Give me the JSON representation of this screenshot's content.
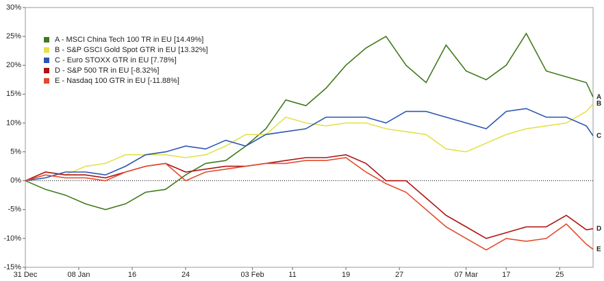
{
  "chart_data": {
    "type": "line",
    "x": [
      0,
      3,
      6,
      9,
      12,
      15,
      18,
      21,
      24,
      27,
      30,
      33,
      36,
      39,
      42,
      45,
      48,
      51,
      54,
      57,
      60,
      63,
      66,
      69,
      72,
      75,
      78,
      81,
      84,
      85
    ],
    "xlim": [
      0,
      85
    ],
    "xticks": [
      {
        "value": 0,
        "label": "31 Dec"
      },
      {
        "value": 8,
        "label": "08 Jan"
      },
      {
        "value": 16,
        "label": "16"
      },
      {
        "value": 24,
        "label": "24"
      },
      {
        "value": 34,
        "label": "03 Feb"
      },
      {
        "value": 40,
        "label": "11"
      },
      {
        "value": 48,
        "label": "19"
      },
      {
        "value": 56,
        "label": "27"
      },
      {
        "value": 66,
        "label": "07 Mar"
      },
      {
        "value": 72,
        "label": "17"
      },
      {
        "value": 80,
        "label": "25"
      }
    ],
    "ylim": [
      -15,
      30
    ],
    "yticks": [
      {
        "value": -15,
        "label": "-15%"
      },
      {
        "value": -10,
        "label": "-10%"
      },
      {
        "value": -5,
        "label": "-5%"
      },
      {
        "value": 0,
        "label": "0%"
      },
      {
        "value": 5,
        "label": "5%"
      },
      {
        "value": 10,
        "label": "10%"
      },
      {
        "value": 15,
        "label": "15%"
      },
      {
        "value": 20,
        "label": "20%"
      },
      {
        "value": 25,
        "label": "25%"
      },
      {
        "value": 30,
        "label": "30%"
      }
    ],
    "zero_line": true,
    "legend": "top-left",
    "series": [
      {
        "name": "A - MSCI China Tech 100 TR in EU [14.49%]",
        "tag": "A",
        "color": "#3f7a1c",
        "values": [
          0,
          -1.5,
          -2.5,
          -4,
          -5,
          -4,
          -2,
          -1.5,
          1,
          3,
          3.5,
          6,
          9,
          14,
          13,
          16,
          20,
          23,
          25,
          20,
          17,
          23.5,
          19,
          17.5,
          20,
          25.5,
          19,
          18,
          17,
          14.49
        ]
      },
      {
        "name": "B - S&P GSCI Gold Spot GTR in EU [13.32%]",
        "tag": "B",
        "color": "#e2e24a",
        "values": [
          0,
          1.5,
          1,
          2.5,
          3,
          4.5,
          4.5,
          4.5,
          4,
          4.5,
          6,
          8,
          8,
          11,
          10,
          9.5,
          10,
          10,
          9,
          8.5,
          8,
          5.5,
          5,
          6.5,
          8,
          9,
          9.5,
          10,
          12,
          13.32
        ]
      },
      {
        "name": "C - Euro STOXX GTR in EU [7.78%]",
        "tag": "C",
        "color": "#2b56b0",
        "values": [
          0,
          0.5,
          1.5,
          1.5,
          1,
          2.5,
          4.5,
          5,
          6,
          5.5,
          7,
          6,
          8,
          8.5,
          9,
          11,
          11,
          11,
          10,
          12,
          12,
          11,
          10,
          9,
          12,
          12.5,
          11,
          11,
          9.5,
          7.78
        ]
      },
      {
        "name": "D - S&P 500 TR in EU [-8.32%]",
        "tag": "D",
        "color": "#b01212",
        "values": [
          0,
          1.5,
          1,
          1,
          0.5,
          1.5,
          2.5,
          3,
          1.5,
          2,
          2.5,
          2.5,
          3,
          3.5,
          4,
          4,
          4.5,
          3,
          0,
          0,
          -3,
          -6,
          -8,
          -10,
          -9,
          -8,
          -8,
          -6,
          -8.5,
          -8.32
        ]
      },
      {
        "name": "E - Nasdaq 100 GTR in EU [-11.88%]",
        "tag": "E",
        "color": "#e24a2e",
        "values": [
          0,
          1,
          0.5,
          0.5,
          0,
          1.5,
          2.5,
          3,
          0,
          1.5,
          2,
          2.5,
          3,
          3,
          3.5,
          3.5,
          4,
          1.5,
          -0.5,
          -2,
          -5,
          -8,
          -10,
          -12,
          -10,
          -10.5,
          -10,
          -7.5,
          -11,
          -11.88
        ]
      }
    ]
  }
}
